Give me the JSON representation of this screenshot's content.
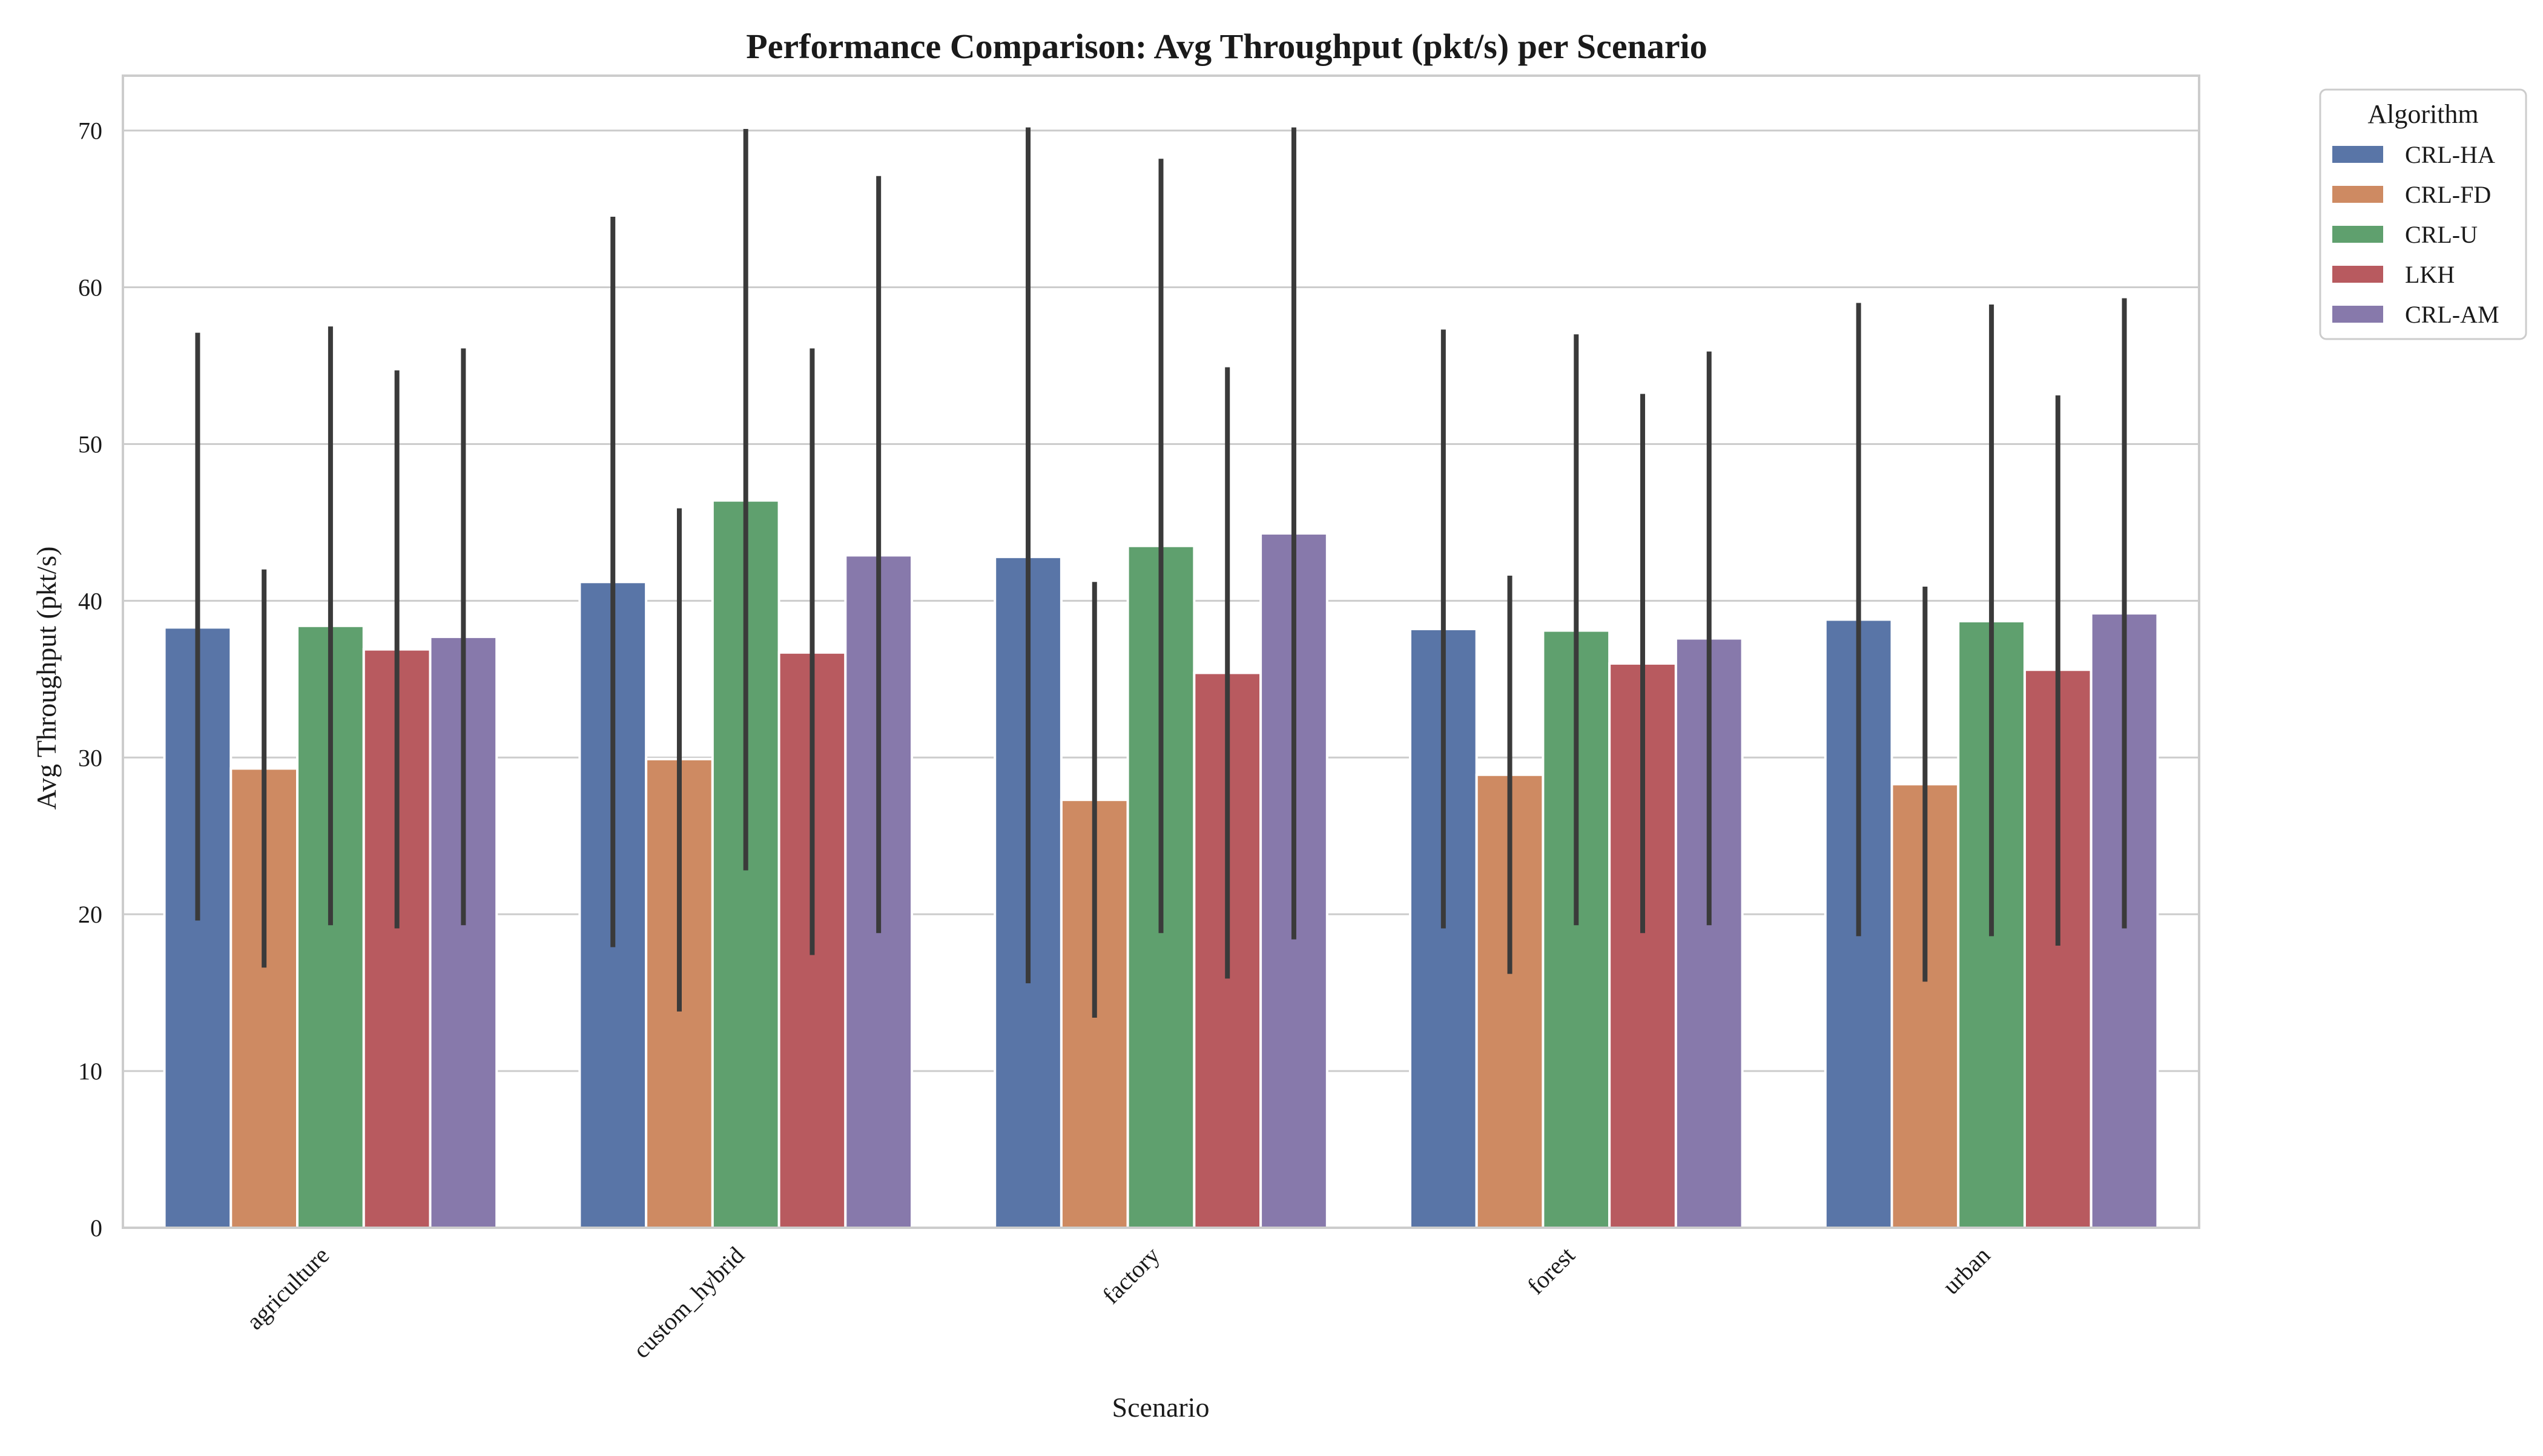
{
  "chart_data": {
    "type": "bar",
    "title": "Performance Comparison: Avg Throughput (pkt/s) per Scenario",
    "xlabel": "Scenario",
    "ylabel": "Avg Throughput (pkt/s)",
    "ylim": [
      0,
      73.5
    ],
    "yticks": [
      0,
      10,
      20,
      30,
      40,
      50,
      60,
      70
    ],
    "grid": true,
    "legend_title": "Algorithm",
    "legend_position": "outside-top-right",
    "categories": [
      "agriculture",
      "custom_hybrid",
      "factory",
      "forest",
      "urban"
    ],
    "series": [
      {
        "name": "CRL-HA",
        "color": "#5975a7",
        "values": [
          38.3,
          41.2,
          42.8,
          38.2,
          38.8
        ],
        "error_low": [
          19.6,
          17.9,
          15.6,
          19.1,
          18.6
        ],
        "error_high": [
          57.1,
          64.5,
          70.2,
          57.3,
          59.0
        ]
      },
      {
        "name": "CRL-FD",
        "color": "#ce8a62",
        "values": [
          29.3,
          29.9,
          27.3,
          28.9,
          28.3
        ],
        "error_low": [
          16.6,
          13.8,
          13.4,
          16.2,
          15.7
        ],
        "error_high": [
          42.0,
          45.9,
          41.2,
          41.6,
          40.9
        ]
      },
      {
        "name": "CRL-U",
        "color": "#5fa06e",
        "values": [
          38.4,
          46.4,
          43.5,
          38.1,
          38.7
        ],
        "error_low": [
          19.3,
          22.8,
          18.8,
          19.3,
          18.6
        ],
        "error_high": [
          57.5,
          70.1,
          68.2,
          57.0,
          58.9
        ]
      },
      {
        "name": "LKH",
        "color": "#b85a5f",
        "values": [
          36.9,
          36.7,
          35.4,
          36.0,
          35.6
        ],
        "error_low": [
          19.1,
          17.4,
          15.9,
          18.8,
          18.0
        ],
        "error_high": [
          54.7,
          56.1,
          54.9,
          53.2,
          53.1
        ]
      },
      {
        "name": "CRL-AM",
        "color": "#8779ab",
        "values": [
          37.7,
          42.9,
          44.3,
          37.6,
          39.2
        ],
        "error_low": [
          19.3,
          18.8,
          18.4,
          19.3,
          19.1
        ],
        "error_high": [
          56.1,
          67.1,
          70.2,
          55.9,
          59.3
        ]
      }
    ]
  }
}
